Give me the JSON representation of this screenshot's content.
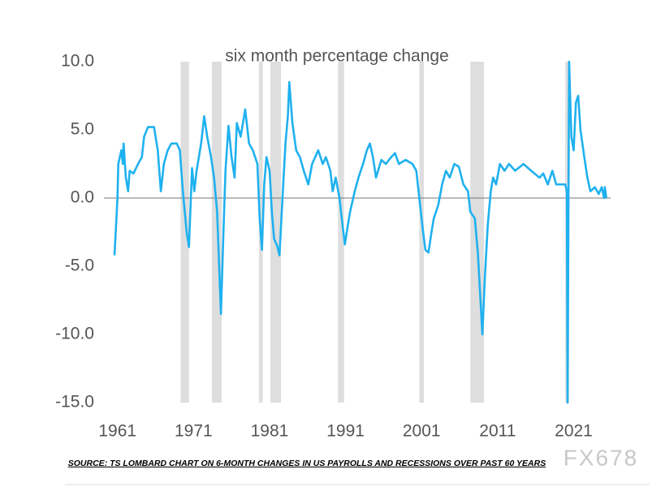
{
  "chart_data": {
    "type": "line",
    "title": "six month percentage change",
    "color": "#1fb1ef",
    "shade_color": "#dedede",
    "x": [
      1960.6,
      1961.0,
      1961.1,
      1961.5,
      1961.7,
      1961.8,
      1962.1,
      1962.4,
      1962.6,
      1963.1,
      1963.7,
      1964.2,
      1964.5,
      1965.0,
      1965.8,
      1966.3,
      1966.7,
      1967.1,
      1967.6,
      1968.1,
      1968.8,
      1969.2,
      1969.6,
      1970.1,
      1970.4,
      1970.8,
      1971.1,
      1971.4,
      1972.0,
      1972.4,
      1972.8,
      1973.3,
      1973.7,
      1974.1,
      1974.6,
      1974.9,
      1975.2,
      1975.6,
      1976.0,
      1976.4,
      1976.7,
      1977.2,
      1977.8,
      1978.3,
      1978.8,
      1979.4,
      1979.7,
      1980.0,
      1980.3,
      1980.6,
      1981.0,
      1981.3,
      1981.6,
      1982.0,
      1982.3,
      1982.8,
      1983.1,
      1983.4,
      1983.6,
      1984.0,
      1984.5,
      1985.0,
      1985.5,
      1986.1,
      1986.6,
      1987.4,
      1988.0,
      1988.4,
      1989.0,
      1989.3,
      1989.7,
      1990.2,
      1990.6,
      1990.9,
      1991.3,
      1991.6,
      1992.2,
      1992.7,
      1993.3,
      1993.8,
      1994.2,
      1994.6,
      1995.0,
      1995.7,
      1996.3,
      1997.0,
      1997.5,
      1998.0,
      1998.9,
      1999.8,
      2000.3,
      2000.6,
      2000.9,
      2001.2,
      2001.5,
      2001.9,
      2002.3,
      2002.6,
      2003.2,
      2003.7,
      2004.2,
      2004.7,
      2005.3,
      2005.9,
      2006.5,
      2007.1,
      2007.4,
      2008.0,
      2008.4,
      2008.7,
      2009.0,
      2009.3,
      2009.7,
      2010.1,
      2010.4,
      2010.8,
      2011.3,
      2011.9,
      2012.5,
      2013.3,
      2014.4,
      2015.4,
      2016.5,
      2017.0,
      2017.6,
      2018.2,
      2018.7,
      2019.4,
      2019.9,
      2020.1,
      2020.2,
      2020.4,
      2020.7,
      2021.0,
      2021.3,
      2021.6,
      2021.9,
      2022.4,
      2022.8,
      2023.2,
      2023.8,
      2024.3,
      2024.7,
      2025.0,
      2025.1,
      2025.3
    ],
    "values": [
      -4.2,
      0.0,
      2.5,
      3.5,
      2.5,
      4.0,
      1.5,
      0.5,
      2.0,
      1.8,
      2.5,
      3.0,
      4.5,
      5.2,
      5.2,
      3.5,
      0.5,
      2.5,
      3.5,
      4.0,
      4.0,
      3.5,
      0.5,
      -2.5,
      -3.6,
      2.2,
      0.5,
      2.0,
      4.0,
      6.0,
      4.5,
      3.0,
      1.5,
      -1.0,
      -8.5,
      -3.0,
      2.0,
      5.3,
      3.0,
      1.5,
      5.5,
      4.5,
      6.5,
      4.0,
      3.5,
      2.5,
      -1.5,
      -3.8,
      1.0,
      3.0,
      2.0,
      -1.0,
      -3.0,
      -3.5,
      -4.2,
      1.0,
      4.0,
      6.0,
      8.5,
      5.5,
      3.5,
      3.0,
      2.0,
      1.0,
      2.5,
      3.5,
      2.5,
      3.0,
      2.0,
      0.5,
      1.5,
      0.0,
      -2.0,
      -3.4,
      -2.0,
      -1.0,
      0.5,
      1.5,
      2.5,
      3.5,
      4.0,
      3.0,
      1.5,
      2.8,
      2.5,
      3.0,
      3.3,
      2.5,
      2.8,
      2.5,
      2.0,
      0.5,
      -1.0,
      -2.5,
      -3.8,
      -4.0,
      -2.5,
      -1.5,
      -0.5,
      1.0,
      2.0,
      1.5,
      2.5,
      2.3,
      1.0,
      0.5,
      -1.0,
      -1.5,
      -4.0,
      -7.0,
      -10.0,
      -6.0,
      -2.0,
      0.5,
      1.5,
      1.0,
      2.5,
      2.0,
      2.5,
      2.0,
      2.5,
      2.0,
      1.5,
      1.8,
      1.0,
      2.0,
      1.0,
      1.0,
      1.0,
      0.5,
      -15.0,
      10.0,
      4.5,
      3.5,
      7.0,
      7.5,
      5.0,
      3.0,
      1.5,
      0.5,
      0.8,
      0.3,
      0.8,
      0.0,
      0.8,
      0.0
    ],
    "shaded_ranges": [
      [
        1969.3,
        1970.4
      ],
      [
        1973.4,
        1974.7
      ],
      [
        1979.6,
        1980.1
      ],
      [
        1981.1,
        1982.5
      ],
      [
        1990.0,
        1990.8
      ],
      [
        2000.7,
        2001.3
      ],
      [
        2007.4,
        2009.2
      ],
      [
        2019.9,
        2020.4
      ]
    ],
    "xlim": [
      1959,
      2026.5
    ],
    "xticks": [
      1961,
      1971,
      1981,
      1991,
      2001,
      2011,
      2021
    ],
    "ylim": [
      -15,
      10
    ],
    "yticks": [
      {
        "value": -15,
        "label": "-15.0"
      },
      {
        "value": -10,
        "label": "-10.0"
      },
      {
        "value": -5,
        "label": "-5.0"
      },
      {
        "value": 0,
        "label": "0.0"
      },
      {
        "value": 5,
        "label": "5.0"
      },
      {
        "value": 10,
        "label": "10.0"
      }
    ],
    "source": "SOURCE: TS LOMBARD CHART ON 6-MONTH CHANGES IN US PAYROLLS AND RECESSIONS OVER PAST 60 YEARS",
    "watermark": "FX678"
  }
}
